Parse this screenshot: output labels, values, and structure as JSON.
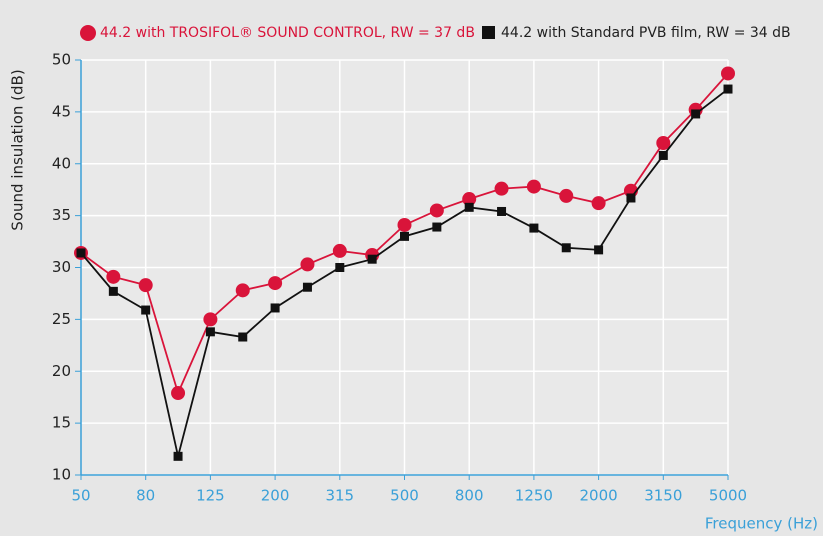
{
  "chart_data": {
    "type": "line",
    "xlabel": "Frequency (Hz)",
    "ylabel": "Sound insulation (dB)",
    "categories": [
      "50",
      null,
      "80",
      null,
      "125",
      null,
      "200",
      null,
      "315",
      null,
      "500",
      null,
      "800",
      null,
      "1250",
      null,
      "2000",
      null,
      "3150",
      null,
      "5000"
    ],
    "series": [
      {
        "name": "44.2 with TROSIFOL® SOUND CONTROL, RW = 37 dB",
        "color": "#d9143a",
        "marker": "circle",
        "values": [
          31.4,
          29.1,
          28.3,
          17.9,
          25.0,
          27.8,
          28.5,
          30.3,
          31.6,
          31.2,
          34.1,
          35.5,
          36.6,
          37.6,
          37.8,
          36.9,
          36.2,
          37.4,
          42.0,
          45.2,
          48.7
        ]
      },
      {
        "name": "44.2 with Standard PVB film, RW = 34 dB",
        "color": "#111111",
        "marker": "square",
        "values": [
          31.4,
          27.7,
          25.9,
          11.8,
          23.8,
          23.3,
          26.1,
          28.1,
          30.0,
          30.8,
          33.0,
          33.9,
          35.8,
          35.4,
          33.8,
          31.9,
          31.7,
          36.7,
          40.8,
          44.8,
          47.2
        ]
      }
    ],
    "ylim": [
      10,
      50
    ],
    "yticks": [
      10,
      15,
      20,
      25,
      30,
      35,
      40,
      45,
      50
    ],
    "grid": true
  }
}
